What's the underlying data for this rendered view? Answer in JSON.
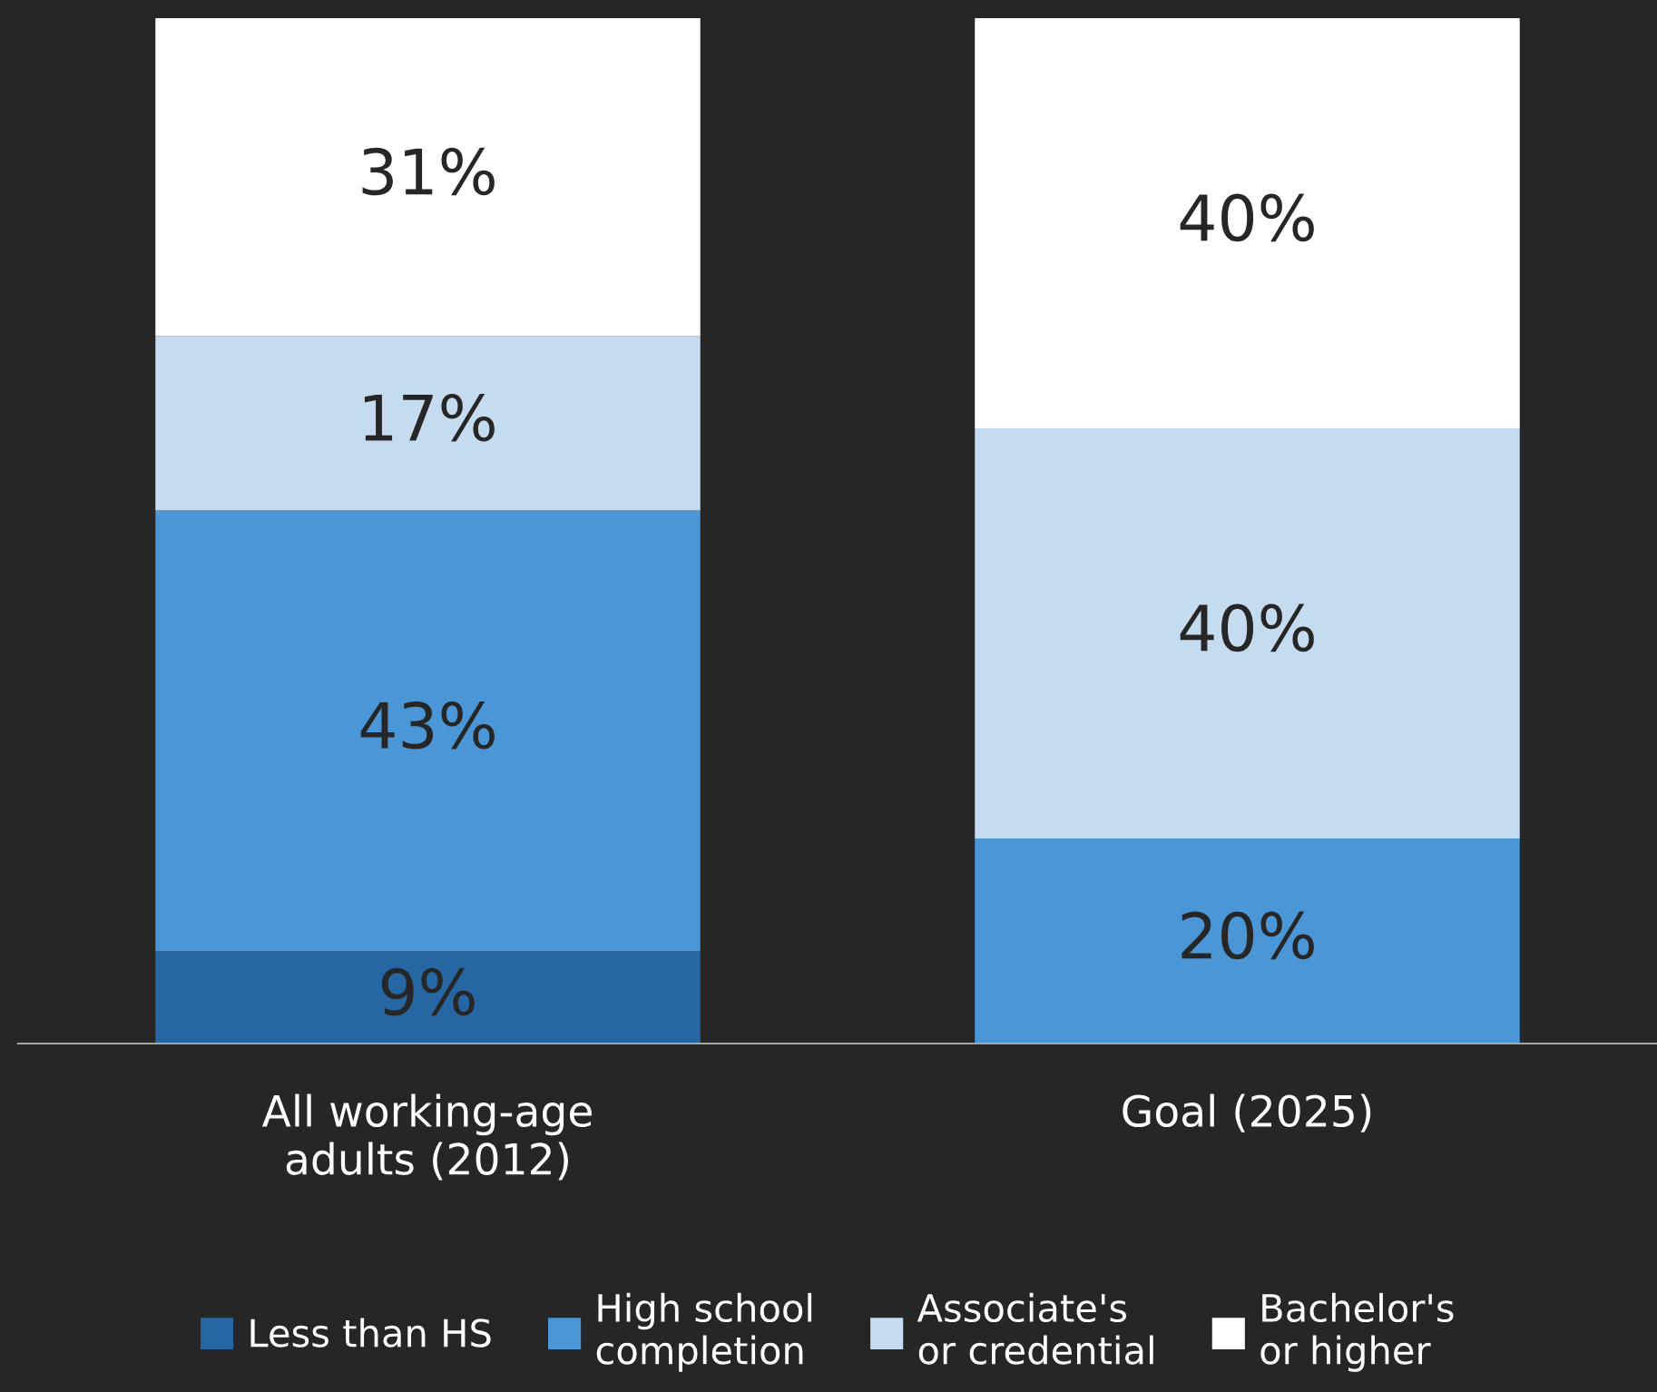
{
  "chart_data": {
    "type": "bar",
    "stacked": true,
    "categories": [
      "All working-age\nadults (2012)",
      "Goal (2025)"
    ],
    "series": [
      {
        "name": "Less than HS",
        "color": "#2566a3",
        "values": [
          9,
          null
        ],
        "value_labels": [
          "9%",
          null
        ]
      },
      {
        "name": "High school\ncompletion",
        "color": "#4a96d6",
        "values": [
          43,
          20
        ],
        "value_labels": [
          "43%",
          "20%"
        ]
      },
      {
        "name": "Associate's\nor credential",
        "color": "#c5dcf0",
        "values": [
          17,
          40
        ],
        "value_labels": [
          "17%",
          "40%"
        ]
      },
      {
        "name": "Bachelor's\nor higher",
        "color": "#ffffff",
        "values": [
          31,
          40
        ],
        "value_labels": [
          "31%",
          "40%"
        ]
      }
    ],
    "legend": "bottom",
    "grid": false
  }
}
